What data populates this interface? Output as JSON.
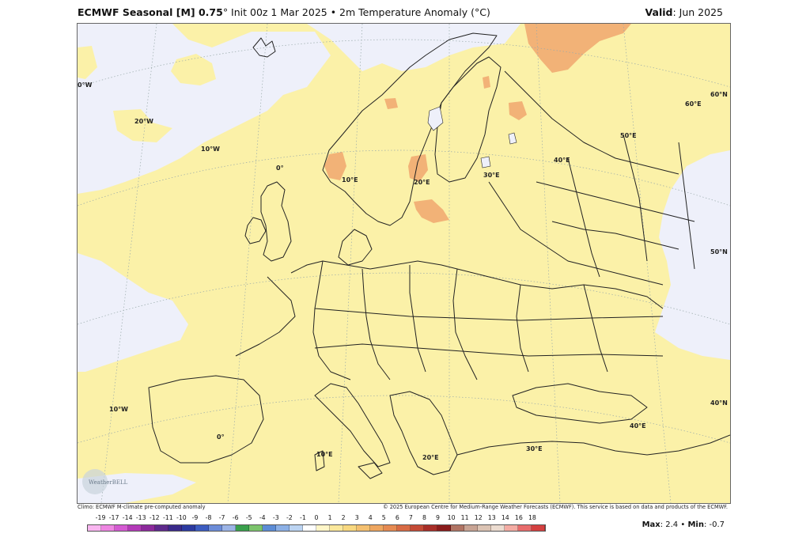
{
  "header": {
    "title_bold": "ECMWF Seasonal [M] 0.75",
    "title_rest": "° Init 00z 1 Mar 2025 • 2m Temperature Anomaly (°C)",
    "valid_bold": "Valid",
    "valid_rest": ": Jun 2025"
  },
  "map": {
    "region": "Europe",
    "colors": {
      "land_anomaly": "#fbf1a8",
      "neutral": "#eef0fa",
      "warm_anomaly": "#f2b277",
      "border": "#222222"
    },
    "longitude_labels": [
      "0°W",
      "20°W",
      "10°W",
      "0°",
      "10°E",
      "20°E",
      "30°E",
      "40°E",
      "50°E",
      "60°E",
      "10°W",
      "0°",
      "10°E",
      "20°E",
      "30°E",
      "40°E",
      "40°N"
    ],
    "latitude_labels": [
      "60°N",
      "50°N",
      "40°N"
    ],
    "logo": "WeatherBELL"
  },
  "credits": {
    "left": "Climo: ECMWF M-climate pre-computed anomaly",
    "right": "© 2025 European Centre for Medium-Range Weather Forecasts (ECMWF). This service is based on data and products of the ECMWF."
  },
  "colorbar": {
    "labels": [
      "-19",
      "-17",
      "-14",
      "-13",
      "-12",
      "-11",
      "-10",
      "-9",
      "-8",
      "-7",
      "-6",
      "-5",
      "-4",
      "-3",
      "-2",
      "-1",
      "0",
      "1",
      "2",
      "3",
      "4",
      "5",
      "6",
      "7",
      "8",
      "9",
      "10",
      "11",
      "12",
      "13",
      "14",
      "16",
      "18"
    ],
    "colors": [
      "#f9b6f0",
      "#ee86e2",
      "#d45ad2",
      "#b33ab8",
      "#8c2a9c",
      "#5e2a8c",
      "#3a2a8a",
      "#2c3aa0",
      "#3c5cc0",
      "#6c8cd8",
      "#9cb4e6",
      "#3aa04c",
      "#7cc46c",
      "#5c8cd6",
      "#8cb0e6",
      "#bcd4f2",
      "#ffffff",
      "#fff6c8",
      "#fbe89c",
      "#f8d880",
      "#f4c070",
      "#eea660",
      "#e68a52",
      "#d86a44",
      "#c44a36",
      "#a82e28",
      "#8a1c1c",
      "#b07464",
      "#c8a494",
      "#dcc4b4",
      "#ecdcd0",
      "#f4aca4",
      "#e86c6c",
      "#d44040"
    ]
  },
  "stats": {
    "max_label": "Max",
    "max_value": ": 2.4 •",
    "min_label": "Min",
    "min_value": ": -0.7"
  }
}
